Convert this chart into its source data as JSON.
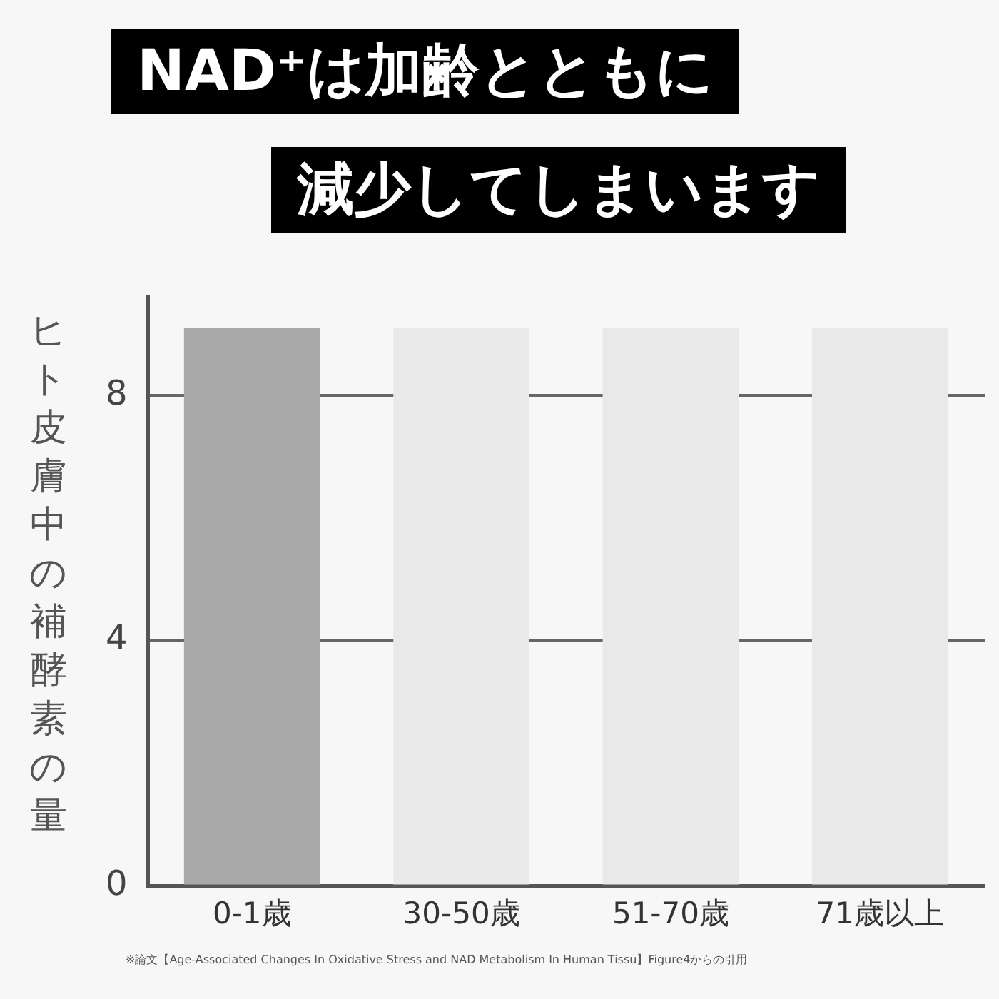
{
  "chart_data": {
    "type": "bar",
    "title": "NAD⁺は加齢とともに",
    "subtitle": "減少してしまいます",
    "ylabel": "ヒト皮膚中の補酵素の量",
    "categories": [
      "0-1歳",
      "30-50歳",
      "51-70歳",
      "71歳以上"
    ],
    "values": [
      9.1,
      9.1,
      9.1,
      9.1
    ],
    "colors": [
      "#a9a9a9",
      "#e9e9e9",
      "#e9e9e9",
      "#e9e9e9"
    ],
    "ylim": [
      0,
      9.6
    ],
    "yticks": [
      0,
      4,
      8
    ],
    "grid": "y",
    "legend": false,
    "annotations": [
      "※論文【Age-Associated Changes In Oxidative Stress and NAD Metabolism In Human Tissu】Figure4からの引用"
    ]
  }
}
